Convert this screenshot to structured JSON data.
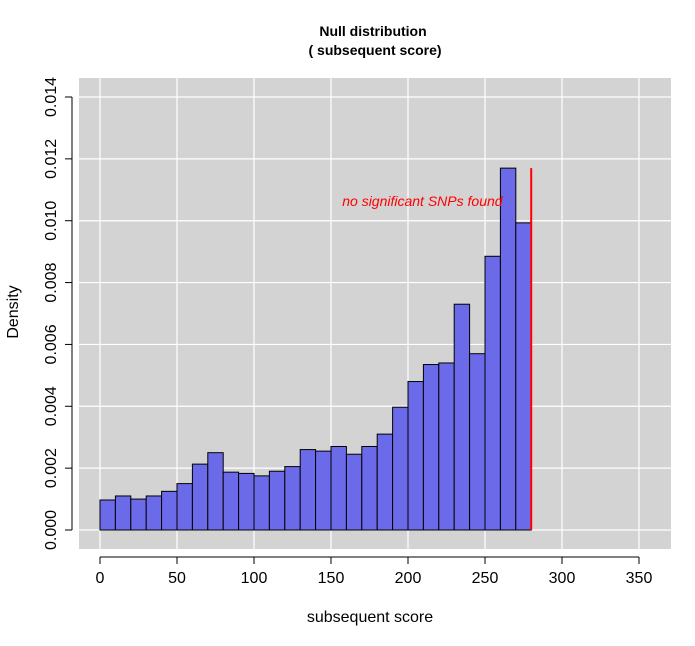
{
  "chart_data": {
    "type": "bar",
    "title": "Null distribution",
    "subtitle": "( subsequent score)",
    "xlabel": "subsequent score",
    "ylabel": "Density",
    "xlim": [
      0,
      350
    ],
    "ylim": [
      0,
      0.014
    ],
    "xticks": [
      0,
      50,
      100,
      150,
      200,
      250,
      300,
      350
    ],
    "yticks": [
      0.0,
      0.002,
      0.004,
      0.006,
      0.008,
      0.01,
      0.012,
      0.014
    ],
    "ytick_labels": [
      "0.000",
      "0.002",
      "0.004",
      "0.006",
      "0.008",
      "0.010",
      "0.012",
      "0.014"
    ],
    "bin_width": 10,
    "bins": [
      {
        "x0": 0,
        "x1": 10,
        "density": 0.00097
      },
      {
        "x0": 10,
        "x1": 20,
        "density": 0.0011
      },
      {
        "x0": 20,
        "x1": 30,
        "density": 0.001
      },
      {
        "x0": 30,
        "x1": 40,
        "density": 0.0011
      },
      {
        "x0": 40,
        "x1": 50,
        "density": 0.00125
      },
      {
        "x0": 50,
        "x1": 60,
        "density": 0.0015
      },
      {
        "x0": 60,
        "x1": 70,
        "density": 0.00213
      },
      {
        "x0": 70,
        "x1": 80,
        "density": 0.0025
      },
      {
        "x0": 80,
        "x1": 90,
        "density": 0.00187
      },
      {
        "x0": 90,
        "x1": 100,
        "density": 0.00183
      },
      {
        "x0": 100,
        "x1": 110,
        "density": 0.00175
      },
      {
        "x0": 110,
        "x1": 120,
        "density": 0.0019
      },
      {
        "x0": 120,
        "x1": 130,
        "density": 0.00205
      },
      {
        "x0": 130,
        "x1": 140,
        "density": 0.0026
      },
      {
        "x0": 140,
        "x1": 150,
        "density": 0.00255
      },
      {
        "x0": 150,
        "x1": 160,
        "density": 0.0027
      },
      {
        "x0": 160,
        "x1": 170,
        "density": 0.00245
      },
      {
        "x0": 170,
        "x1": 180,
        "density": 0.0027
      },
      {
        "x0": 180,
        "x1": 190,
        "density": 0.0031
      },
      {
        "x0": 190,
        "x1": 200,
        "density": 0.00397
      },
      {
        "x0": 200,
        "x1": 210,
        "density": 0.0048
      },
      {
        "x0": 210,
        "x1": 220,
        "density": 0.00535
      },
      {
        "x0": 220,
        "x1": 230,
        "density": 0.0054
      },
      {
        "x0": 230,
        "x1": 240,
        "density": 0.0073
      },
      {
        "x0": 240,
        "x1": 250,
        "density": 0.0057
      },
      {
        "x0": 250,
        "x1": 260,
        "density": 0.00885
      },
      {
        "x0": 260,
        "x1": 270,
        "density": 0.0117
      },
      {
        "x0": 270,
        "x1": 280,
        "density": 0.00993
      }
    ],
    "threshold_line": {
      "x": 280,
      "y_from": 0,
      "y_to": 0.0117
    },
    "annotation": {
      "text": "no significant SNPs found",
      "x": 210,
      "y": 0.0106
    },
    "grid": true,
    "bar_color": "#6b6bea",
    "panel_background": "#d3d3d3",
    "grid_color": "#ffffff",
    "line_color": "#ff0000"
  }
}
